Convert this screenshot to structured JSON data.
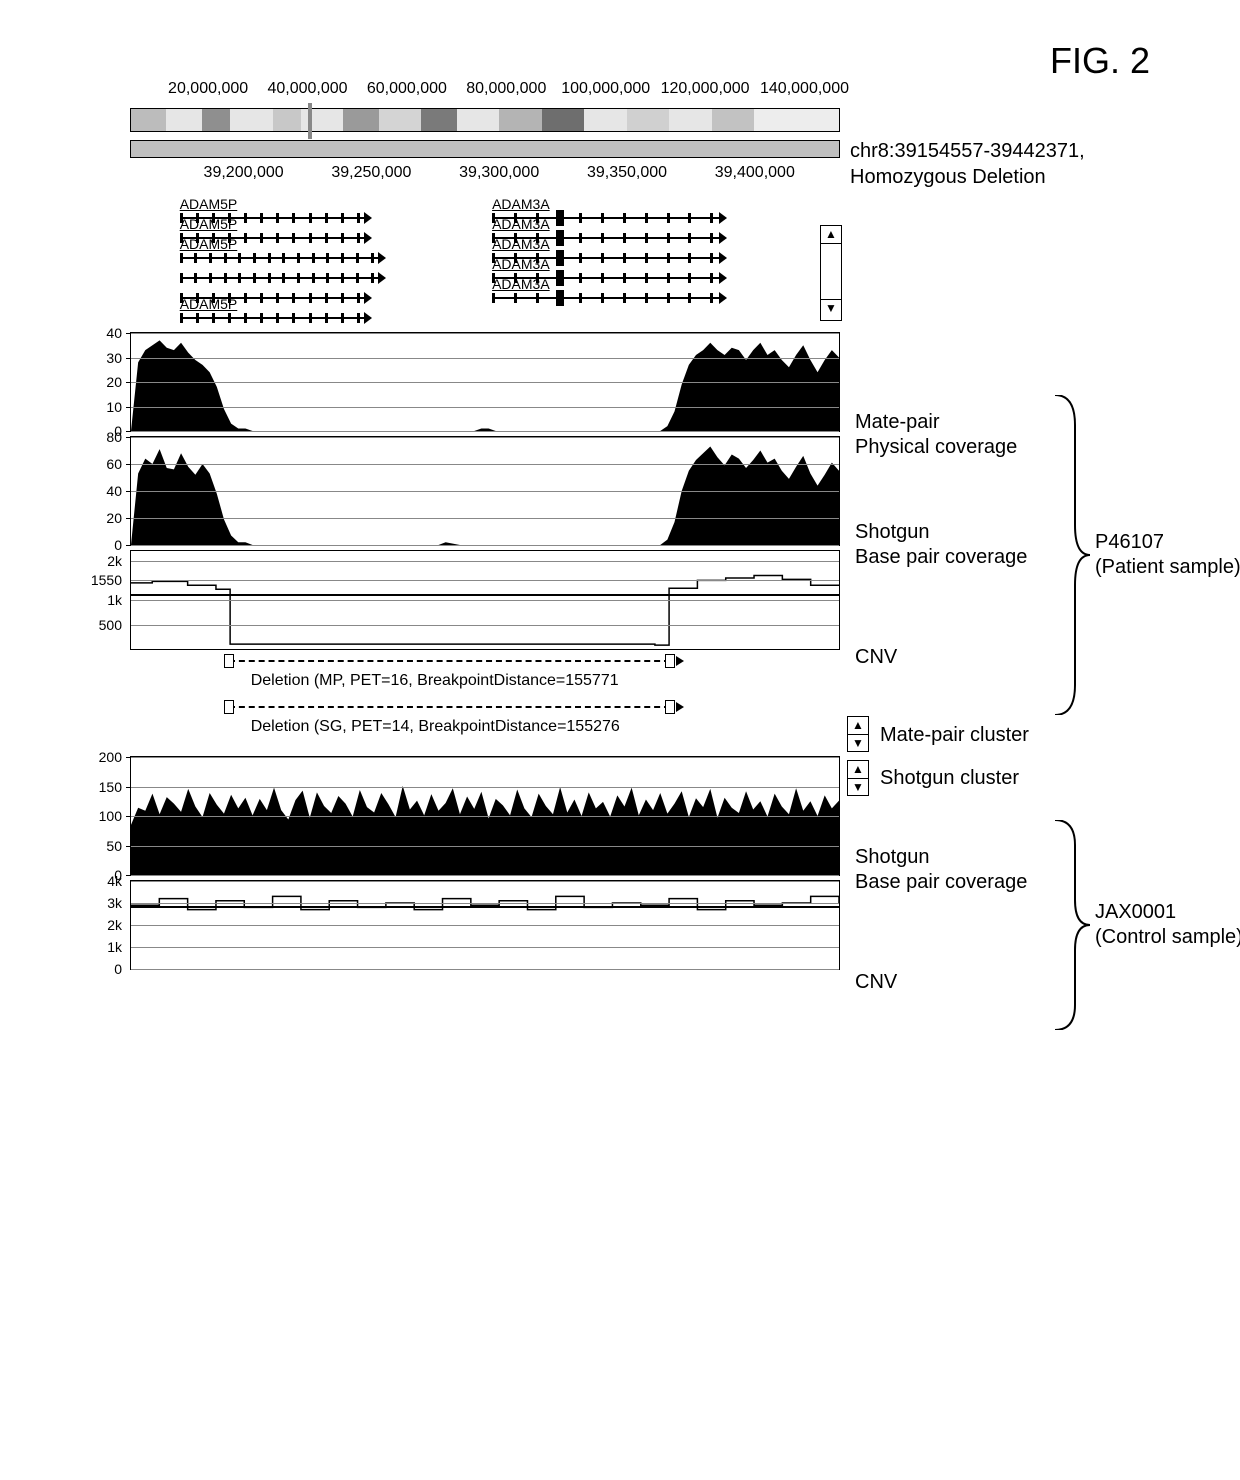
{
  "figure_label": "FIG. 2",
  "region_title_line1": "chr8:39154557-39442371,",
  "region_title_line2": "Homozygous Deletion",
  "ideogram": {
    "ticks": [
      "20,000,000",
      "40,000,000",
      "60,000,000",
      "80,000,000",
      "100,000,000",
      "120,000,000",
      "140,000,000"
    ],
    "tick_pct": [
      11,
      25,
      39,
      53,
      67,
      81,
      95
    ],
    "marker_pct": 25,
    "bands": [
      {
        "start": 0,
        "end": 5,
        "color": "#bcbcbc"
      },
      {
        "start": 5,
        "end": 10,
        "color": "#e6e6e6"
      },
      {
        "start": 10,
        "end": 14,
        "color": "#8f8f8f"
      },
      {
        "start": 14,
        "end": 20,
        "color": "#e6e6e6"
      },
      {
        "start": 20,
        "end": 24,
        "color": "#c8c8c8"
      },
      {
        "start": 24,
        "end": 30,
        "color": "#e6e6e6"
      },
      {
        "start": 30,
        "end": 35,
        "color": "#9a9a9a"
      },
      {
        "start": 35,
        "end": 41,
        "color": "#d4d4d4"
      },
      {
        "start": 41,
        "end": 46,
        "color": "#7a7a7a"
      },
      {
        "start": 46,
        "end": 52,
        "color": "#e6e6e6"
      },
      {
        "start": 52,
        "end": 58,
        "color": "#b4b4b4"
      },
      {
        "start": 58,
        "end": 64,
        "color": "#6e6e6e"
      },
      {
        "start": 64,
        "end": 70,
        "color": "#e6e6e6"
      },
      {
        "start": 70,
        "end": 76,
        "color": "#d0d0d0"
      },
      {
        "start": 76,
        "end": 82,
        "color": "#e6e6e6"
      },
      {
        "start": 82,
        "end": 88,
        "color": "#c2c2c2"
      },
      {
        "start": 88,
        "end": 100,
        "color": "#ededed"
      }
    ]
  },
  "zoom_ruler": {
    "ticks": [
      "39,200,000",
      "39,250,000",
      "39,300,000",
      "39,350,000",
      "39,400,000"
    ],
    "tick_pct": [
      16,
      34,
      52,
      70,
      88
    ]
  },
  "genes": {
    "adam5p_label": "ADAM5P",
    "adam3a_label": "ADAM3A",
    "rows": [
      {
        "y": 18,
        "left_pct": 7,
        "width_pct": 26,
        "label": "ADAM5P",
        "exons": 12,
        "dir": "right"
      },
      {
        "y": 38,
        "left_pct": 7,
        "width_pct": 26,
        "label": "ADAM5P",
        "exons": 12,
        "dir": "right"
      },
      {
        "y": 58,
        "left_pct": 7,
        "width_pct": 28,
        "label": "ADAM5P",
        "exons": 14,
        "dir": "right"
      },
      {
        "y": 78,
        "left_pct": 7,
        "width_pct": 28,
        "label": "ADAM5P",
        "exons": 14,
        "dir": "right"
      },
      {
        "y": 98,
        "left_pct": 7,
        "width_pct": 26,
        "label": "ADAM5P",
        "exons": 12,
        "dir": "right"
      },
      {
        "y": 118,
        "left_pct": 7,
        "width_pct": 26,
        "label": "ADAM5P",
        "exons": 12,
        "dir": "right"
      }
    ],
    "rows_right": [
      {
        "y": 18,
        "left_pct": 51,
        "width_pct": 32,
        "label": "ADAM3A",
        "exons": 11,
        "dir": "right",
        "big": true
      },
      {
        "y": 38,
        "left_pct": 51,
        "width_pct": 32,
        "label": "ADAM3A",
        "exons": 11,
        "dir": "right",
        "big": true
      },
      {
        "y": 58,
        "left_pct": 51,
        "width_pct": 32,
        "label": "ADAM3A",
        "exons": 11,
        "dir": "right",
        "big": true
      },
      {
        "y": 78,
        "left_pct": 51,
        "width_pct": 32,
        "label": "ADAM3A",
        "exons": 11,
        "dir": "right",
        "big": true
      },
      {
        "y": 98,
        "left_pct": 51,
        "width_pct": 32,
        "label": "ADAM3A",
        "exons": 11,
        "dir": "right",
        "big": true
      }
    ]
  },
  "panels": {
    "patient_label": "P46107\n(Patient sample)",
    "control_label": "JAX0001\n(Control sample)",
    "mp_phys": {
      "label_l1": "Mate-pair",
      "label_l2": "Physical coverage",
      "height": 100,
      "ymax": 40,
      "yticks": [
        0,
        10,
        20,
        30,
        40
      ],
      "series": [
        0,
        28,
        33,
        35,
        37,
        34,
        33,
        36,
        32,
        29,
        27,
        24,
        18,
        9,
        3,
        1,
        1,
        0,
        0,
        0,
        0,
        0,
        0,
        0,
        0,
        0,
        0,
        0,
        0,
        0,
        0,
        0,
        0,
        0,
        0,
        0,
        0,
        0,
        0,
        0,
        0,
        0,
        0,
        0,
        0,
        0,
        0,
        0,
        0,
        1,
        1,
        0,
        0,
        0,
        0,
        0,
        0,
        0,
        0,
        0,
        0,
        0,
        0,
        0,
        0,
        0,
        0,
        0,
        0,
        0,
        0,
        0,
        0,
        0,
        0,
        2,
        8,
        19,
        27,
        31,
        33,
        36,
        33,
        31,
        34,
        33,
        29,
        33,
        36,
        31,
        33,
        29,
        26,
        31,
        35,
        29,
        24,
        29,
        33,
        30
      ]
    },
    "sg_base": {
      "label_l1": "Shotgun",
      "label_l2": "Base pair coverage",
      "height": 110,
      "ymax": 80,
      "yticks": [
        0,
        20,
        40,
        60,
        80
      ],
      "series": [
        0,
        53,
        64,
        60,
        71,
        57,
        56,
        68,
        58,
        52,
        60,
        53,
        38,
        19,
        7,
        2,
        2,
        0,
        0,
        0,
        0,
        0,
        0,
        0,
        0,
        0,
        0,
        0,
        0,
        0,
        0,
        0,
        0,
        0,
        0,
        0,
        0,
        0,
        0,
        0,
        0,
        0,
        0,
        0,
        2,
        1,
        0,
        0,
        0,
        0,
        0,
        0,
        0,
        0,
        0,
        0,
        0,
        0,
        0,
        0,
        0,
        0,
        0,
        0,
        0,
        0,
        0,
        0,
        0,
        0,
        0,
        0,
        0,
        0,
        0,
        4,
        17,
        40,
        55,
        63,
        68,
        73,
        65,
        59,
        67,
        64,
        57,
        63,
        70,
        61,
        64,
        55,
        49,
        58,
        66,
        53,
        44,
        52,
        61,
        55
      ]
    },
    "cnv_patient": {
      "label": "CNV",
      "height": 100,
      "yticks": [
        "500",
        "1k",
        "1550",
        "2k"
      ],
      "ytick_pos": [
        75,
        50,
        30,
        10
      ],
      "steps": [
        [
          0,
          1.35
        ],
        [
          3,
          1.38
        ],
        [
          8,
          1.3
        ],
        [
          12,
          1.22
        ],
        [
          14,
          0.1
        ],
        [
          74,
          0.08
        ],
        [
          76,
          1.24
        ],
        [
          80,
          1.4
        ],
        [
          84,
          1.45
        ],
        [
          88,
          1.5
        ],
        [
          92,
          1.42
        ],
        [
          96,
          1.3
        ],
        [
          100,
          1.3
        ]
      ],
      "baseline_pct": 44
    },
    "mp_cluster_label": "Mate-pair cluster",
    "sg_cluster_label": "Shotgun cluster",
    "mp_cluster_text": "Deletion (MP, PET=16, BreakpointDistance=155771",
    "sg_cluster_text": "Deletion (SG, PET=14, BreakpointDistance=155276",
    "cluster_left_pct": 14,
    "cluster_right_pct": 76,
    "control_sg": {
      "label_l1": "Shotgun",
      "label_l2": "Base pair coverage",
      "height": 120,
      "ymax": 200,
      "yticks": [
        0,
        50,
        100,
        150,
        200
      ],
      "series": [
        85,
        114,
        109,
        138,
        103,
        132,
        121,
        107,
        146,
        116,
        98,
        139,
        119,
        104,
        136,
        113,
        131,
        101,
        129,
        110,
        148,
        110,
        94,
        127,
        143,
        97,
        140,
        117,
        105,
        134,
        121,
        99,
        144,
        115,
        106,
        139,
        120,
        98,
        151,
        111,
        126,
        101,
        137,
        109,
        122,
        147,
        103,
        133,
        112,
        141,
        96,
        129,
        118,
        101,
        145,
        113,
        98,
        138,
        117,
        103,
        149,
        106,
        128,
        100,
        140,
        113,
        124,
        99,
        135,
        116,
        148,
        101,
        128,
        110,
        139,
        104,
        121,
        142,
        98,
        130,
        115,
        146,
        97,
        131,
        114,
        105,
        142,
        111,
        125,
        99,
        138,
        116,
        103,
        147,
        109,
        125,
        100,
        135,
        113,
        126
      ]
    },
    "cnv_control": {
      "label": "CNV",
      "height": 90,
      "yticks": [
        "0",
        "1k",
        "2k",
        "3k",
        "4k"
      ],
      "ytick_pos": [
        100,
        75,
        50,
        25,
        0
      ],
      "steps": [
        [
          0,
          2.9
        ],
        [
          4,
          3.2
        ],
        [
          8,
          2.7
        ],
        [
          12,
          3.1
        ],
        [
          16,
          2.8
        ],
        [
          20,
          3.3
        ],
        [
          24,
          2.7
        ],
        [
          28,
          3.1
        ],
        [
          32,
          2.8
        ],
        [
          36,
          3.0
        ],
        [
          40,
          2.7
        ],
        [
          44,
          3.2
        ],
        [
          48,
          2.9
        ],
        [
          52,
          3.1
        ],
        [
          56,
          2.7
        ],
        [
          60,
          3.3
        ],
        [
          64,
          2.8
        ],
        [
          68,
          3.0
        ],
        [
          72,
          2.9
        ],
        [
          76,
          3.2
        ],
        [
          80,
          2.7
        ],
        [
          84,
          3.1
        ],
        [
          88,
          2.9
        ],
        [
          92,
          3.0
        ],
        [
          96,
          3.3
        ],
        [
          100,
          3.0
        ]
      ],
      "baseline_pct": 28
    }
  },
  "colors": {
    "fill": "#000000",
    "grid": "#888888",
    "bg": "#ffffff",
    "step": "#000000"
  }
}
